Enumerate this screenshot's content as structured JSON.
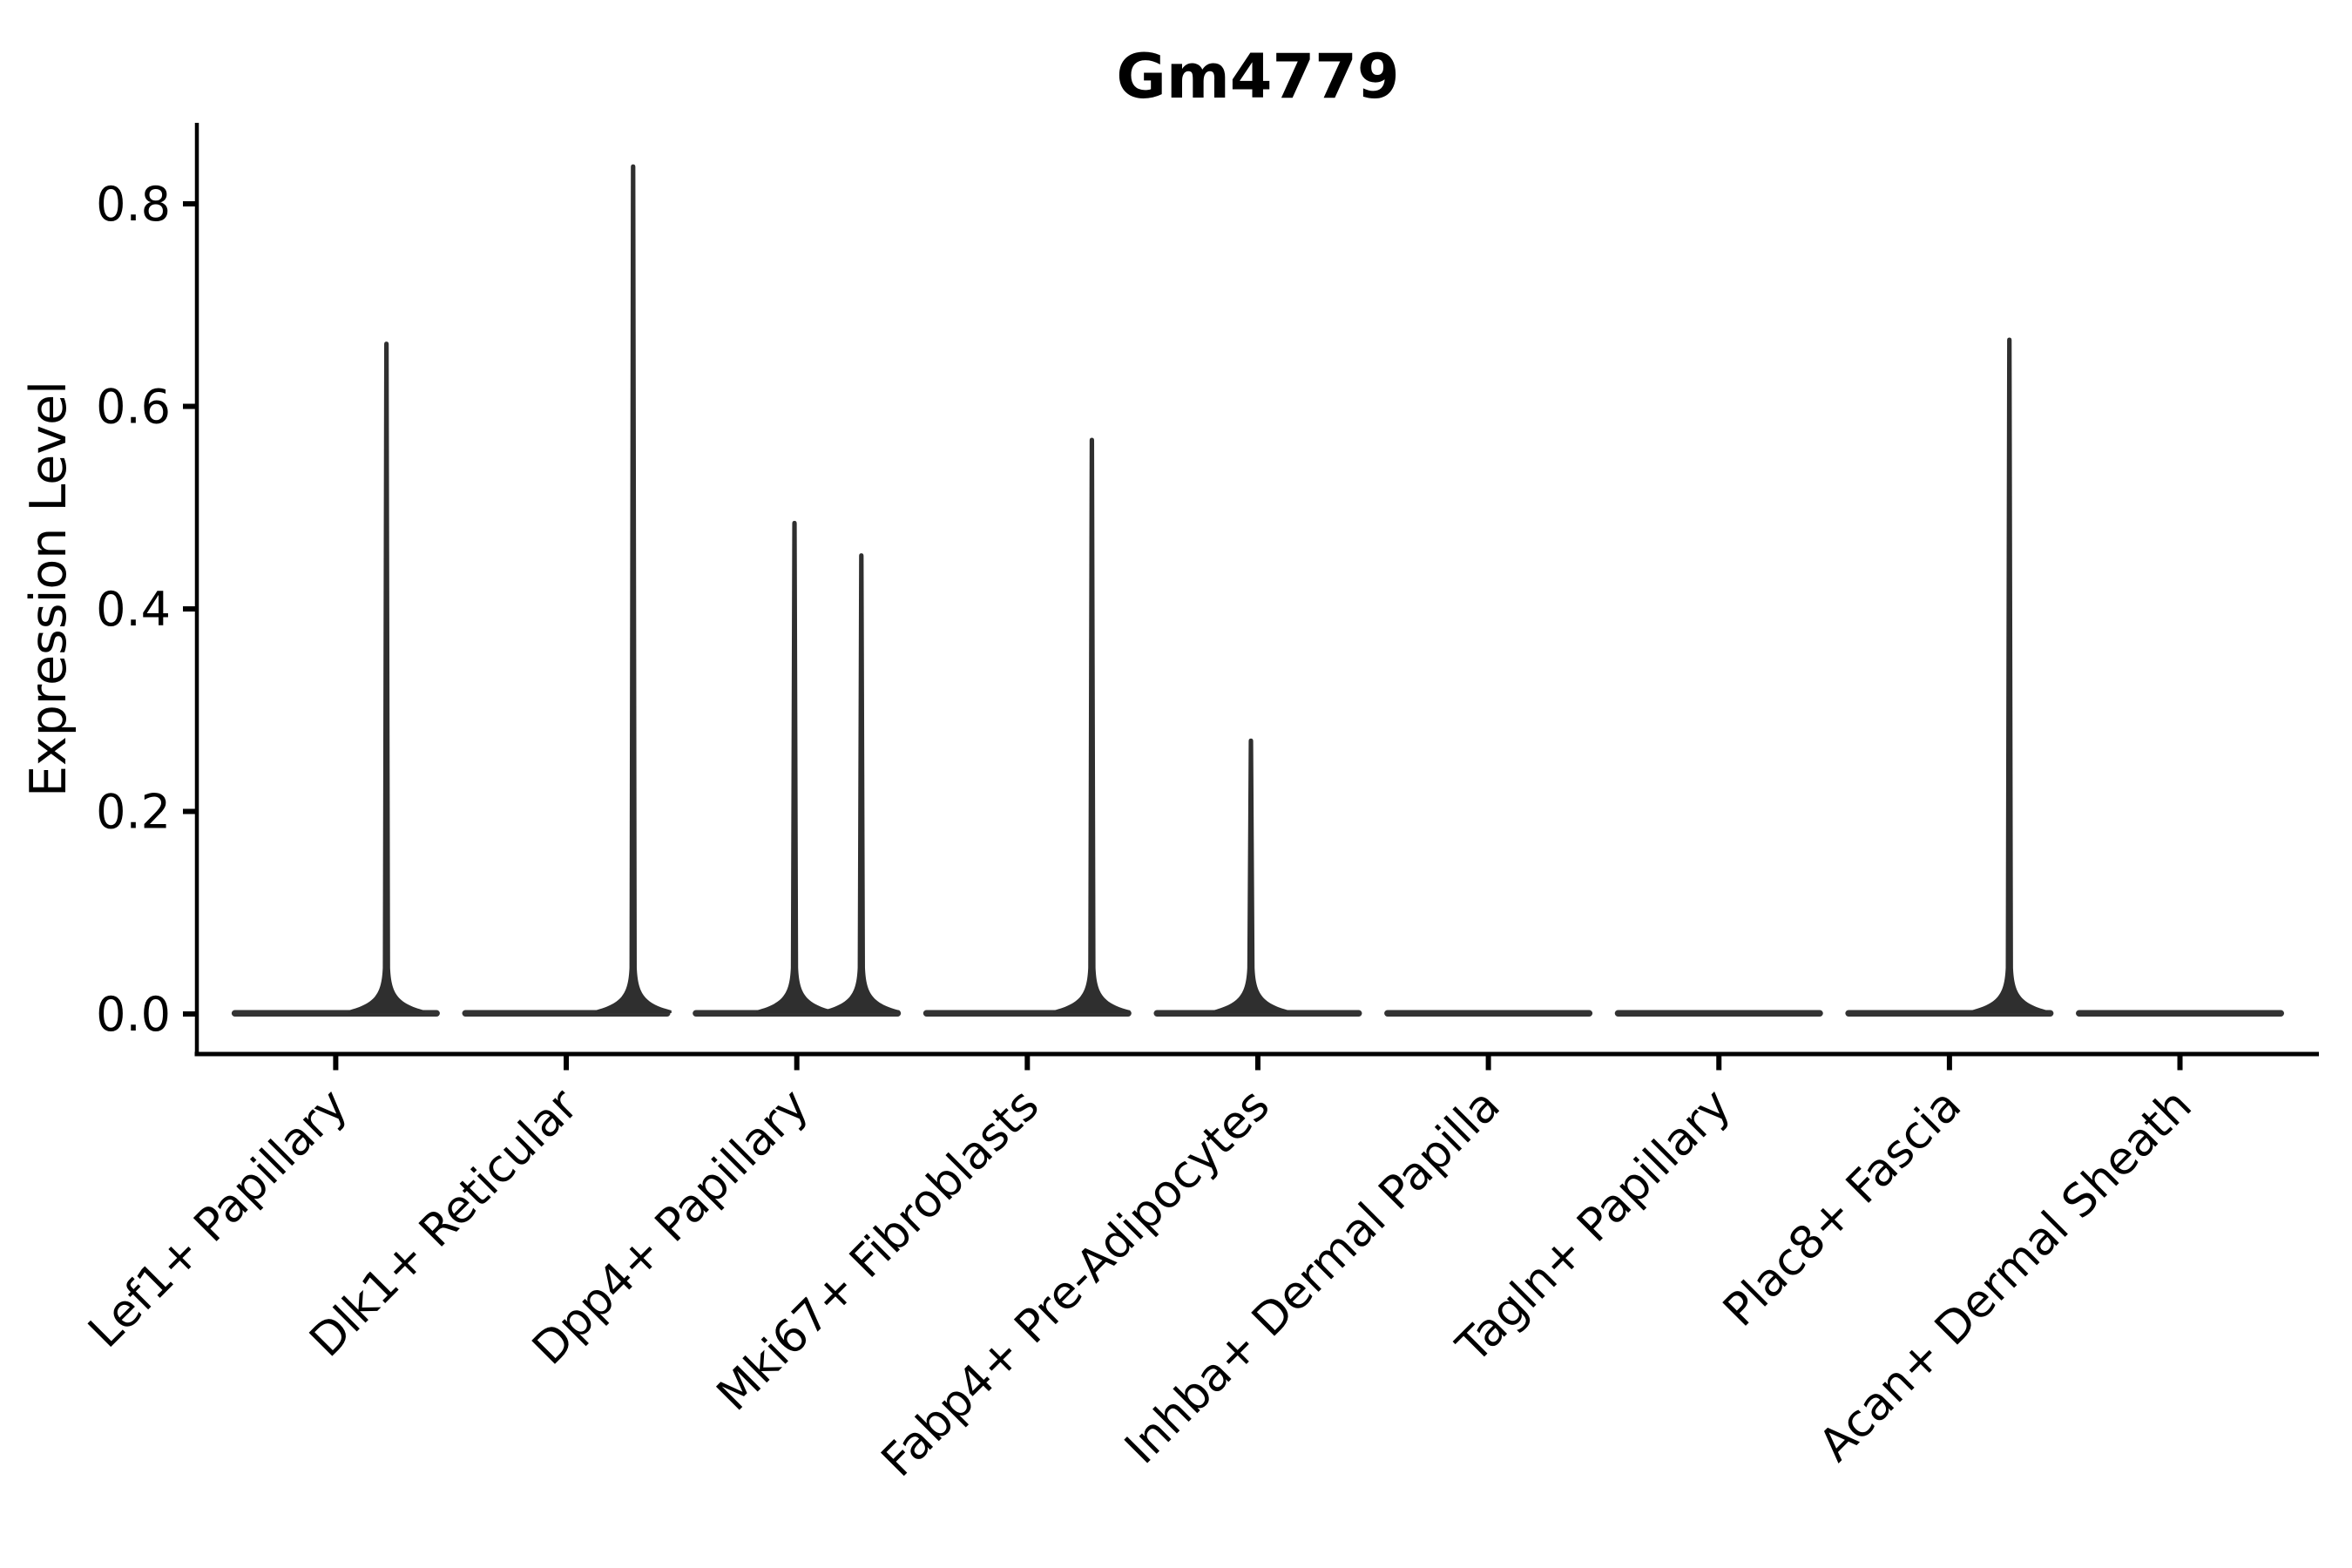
{
  "chart_data": {
    "type": "violin",
    "title": "Gm4779",
    "ylabel": "Expression Level",
    "xlabel": "",
    "ylim": [
      -0.04,
      0.88
    ],
    "yticks": [
      0.0,
      0.2,
      0.4,
      0.6,
      0.8
    ],
    "ytick_labels": [
      "0.0",
      "0.2",
      "0.4",
      "0.6",
      "0.8"
    ],
    "grid": false,
    "legend": "none",
    "categories": [
      "Lef1+ Papillary",
      "Dlk1+ Reticular",
      "Dpp4+ Papillary",
      "Mki67+ Fibroblasts",
      "Fabp4+ Pre-Adipocytes",
      "Inhba+ Dermal Papilla",
      "Tagln+ Papillary",
      "Plac8+ Fascia",
      "Acan+ Dermal Sheath"
    ],
    "series": [
      {
        "category": "Lef1+ Papillary",
        "max_expression": 0.664,
        "spikes": [
          {
            "rel": 0.22,
            "value": 0.664
          }
        ]
      },
      {
        "category": "Dlk1+ Reticular",
        "max_expression": 0.839,
        "spikes": [
          {
            "rel": 0.29,
            "value": 0.839
          }
        ]
      },
      {
        "category": "Dpp4+ Papillary",
        "max_expression": 0.487,
        "spikes": [
          {
            "rel": -0.01,
            "value": 0.487
          },
          {
            "rel": 0.28,
            "value": 0.455
          }
        ]
      },
      {
        "category": "Mki67+ Fibroblasts",
        "max_expression": 0.569,
        "spikes": [
          {
            "rel": 0.28,
            "value": 0.569
          }
        ]
      },
      {
        "category": "Fabp4+ Pre-Adipocytes",
        "max_expression": 0.272,
        "spikes": [
          {
            "rel": -0.03,
            "value": 0.272
          }
        ]
      },
      {
        "category": "Inhba+ Dermal Papilla",
        "max_expression": 0.0,
        "spikes": []
      },
      {
        "category": "Tagln+ Papillary",
        "max_expression": 0.0,
        "spikes": []
      },
      {
        "category": "Plac8+ Fascia",
        "max_expression": 0.668,
        "spikes": [
          {
            "rel": 0.26,
            "value": 0.668
          }
        ]
      },
      {
        "category": "Acan+ Dermal Sheath",
        "max_expression": 0.0,
        "spikes": []
      }
    ],
    "colors": {
      "violin": "#333333",
      "axis": "#000000",
      "text": "#000000",
      "background": "#ffffff"
    }
  }
}
